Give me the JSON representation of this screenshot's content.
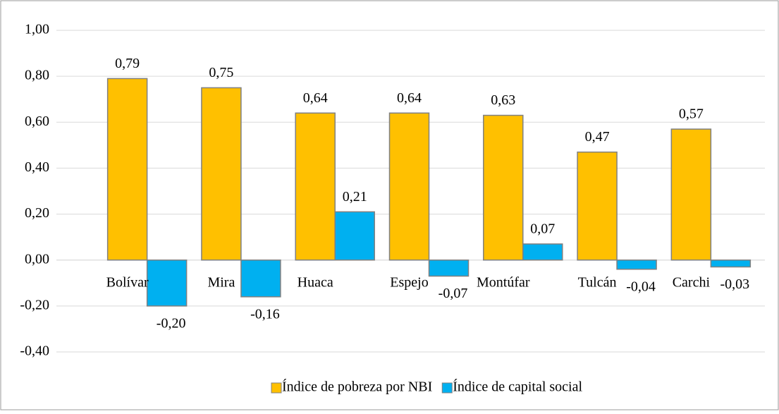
{
  "chart_data": {
    "type": "bar",
    "categories": [
      "Bolívar",
      "Mira",
      "Huaca",
      "Espejo",
      "Montúfar",
      "Tulcán",
      "Carchi"
    ],
    "series": [
      {
        "name": "Índice de pobreza por NBI",
        "color": "#ffc000",
        "values": [
          0.79,
          0.75,
          0.64,
          0.64,
          0.63,
          0.47,
          0.57
        ],
        "value_labels": [
          "0,79",
          "0,75",
          "0,64",
          "0,64",
          "0,63",
          "0,47",
          "0,57"
        ]
      },
      {
        "name": "Índice de capital social",
        "color": "#00b0f0",
        "values": [
          -0.2,
          -0.16,
          0.21,
          -0.07,
          0.07,
          -0.04,
          -0.03
        ],
        "value_labels": [
          "-0,20",
          "-0,16",
          "0,21",
          "-0,07",
          "0,07",
          "-0,04",
          "-0,03"
        ]
      }
    ],
    "ylim": [
      -0.4,
      1.0
    ],
    "yticks": [
      {
        "value": -0.4,
        "label": "-0,40"
      },
      {
        "value": -0.2,
        "label": "-0,20"
      },
      {
        "value": 0,
        "label": "0,00"
      },
      {
        "value": 0.2,
        "label": "0,20"
      },
      {
        "value": 0.4,
        "label": "0,40"
      },
      {
        "value": 0.6,
        "label": "0,60"
      },
      {
        "value": 0.8,
        "label": "0,80"
      },
      {
        "value": 1.0,
        "label": "1,00"
      }
    ],
    "grid": true,
    "legend": "bottom"
  }
}
